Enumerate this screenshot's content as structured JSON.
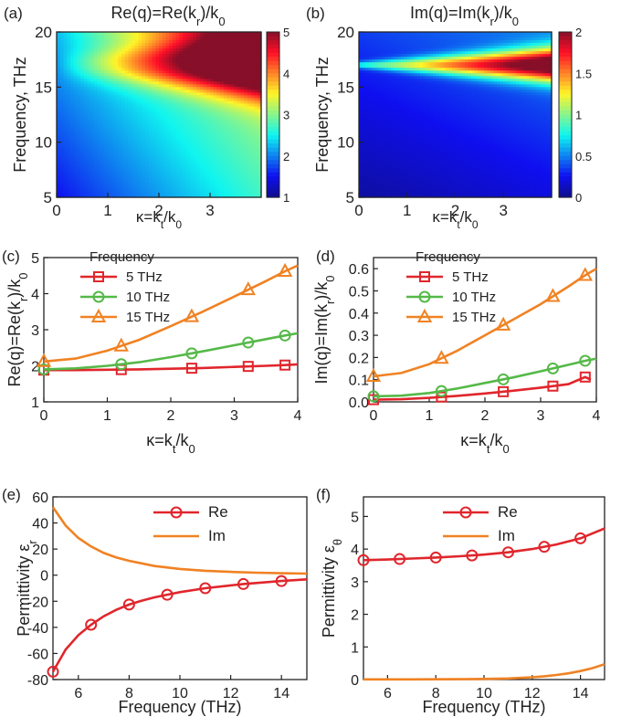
{
  "colors": {
    "red": "#e0262c",
    "green": "#55b948",
    "orange": "#f08223",
    "axis": "#222222"
  },
  "chart_data": [
    {
      "id": "a",
      "panel_label": "(a)",
      "type": "heatmap",
      "title_parts": [
        "Re(q)=Re(k",
        "r",
        ")/k",
        "0"
      ],
      "xlabel_parts": [
        "κ=k",
        "t",
        "/k",
        "0"
      ],
      "ylabel": "Frequency, THz",
      "xlim": [
        0,
        4
      ],
      "ylim": [
        5,
        20
      ],
      "xticks": [
        "0",
        "1",
        "2",
        "3"
      ],
      "yticks": [
        "5",
        "10",
        "15",
        "20"
      ],
      "colorbar": {
        "range": [
          1,
          5
        ],
        "ticks": [
          "1",
          "2",
          "3",
          "4",
          "5"
        ]
      },
      "peak_frequency": 17
    },
    {
      "id": "b",
      "panel_label": "(b)",
      "type": "heatmap",
      "title_parts": [
        "Im(q)=Im(k",
        "r",
        ")/k",
        "0"
      ],
      "xlabel_parts": [
        "κ=k",
        "t",
        "/k",
        "0"
      ],
      "ylabel": "Frequency, THz",
      "xlim": [
        0,
        4
      ],
      "ylim": [
        5,
        20
      ],
      "xticks": [
        "0",
        "1",
        "2",
        "3"
      ],
      "yticks": [
        "5",
        "10",
        "15",
        "20"
      ],
      "colorbar": {
        "range": [
          0,
          2
        ],
        "ticks": [
          "0",
          "0.5",
          "1",
          "1.5",
          "2"
        ]
      },
      "peak_frequency": 17
    },
    {
      "id": "c",
      "panel_label": "(c)",
      "type": "line",
      "ylabel_parts": [
        "Re(q)=Re(k",
        "r",
        ")/k",
        "0"
      ],
      "xlabel_parts": [
        "κ=k",
        "t",
        "/k",
        "0"
      ],
      "xlim": [
        0,
        4
      ],
      "ylim": [
        1,
        5
      ],
      "xticks": [
        "0",
        "1",
        "2",
        "3",
        "4"
      ],
      "yticks": [
        "1",
        "2",
        "3",
        "4",
        "5"
      ],
      "legend_title": "Frequency",
      "legend_position": "top-left",
      "series": [
        {
          "name": "5 THz",
          "marker": "square",
          "color": "#e0262c",
          "x": [
            0,
            0.5,
            1,
            1.5,
            2,
            2.5,
            3,
            3.5,
            3.8,
            4
          ],
          "y": [
            1.88,
            1.88,
            1.89,
            1.9,
            1.92,
            1.94,
            1.97,
            2.0,
            2.02,
            2.04
          ],
          "marker_x": [
            0,
            1.22,
            2.33,
            3.22,
            3.8
          ]
        },
        {
          "name": "10 THz",
          "marker": "circle",
          "color": "#55b948",
          "x": [
            0,
            0.5,
            1,
            1.5,
            2,
            2.5,
            3,
            3.5,
            3.8,
            4
          ],
          "y": [
            1.9,
            1.93,
            2.0,
            2.1,
            2.24,
            2.4,
            2.57,
            2.74,
            2.84,
            2.9
          ],
          "marker_x": [
            0,
            1.22,
            2.33,
            3.22,
            3.8
          ]
        },
        {
          "name": "15 THz",
          "marker": "triangle",
          "color": "#f08223",
          "x": [
            0,
            0.5,
            1,
            1.5,
            2,
            2.5,
            3,
            3.5,
            3.8,
            4
          ],
          "y": [
            2.12,
            2.2,
            2.42,
            2.72,
            3.1,
            3.5,
            3.92,
            4.35,
            4.62,
            4.78
          ],
          "marker_x": [
            0,
            1.22,
            2.33,
            3.22,
            3.8
          ]
        }
      ]
    },
    {
      "id": "d",
      "panel_label": "(d)",
      "type": "line",
      "ylabel_parts": [
        "Im(q)=Im(k",
        "r",
        ")/k",
        "0"
      ],
      "xlabel_parts": [
        "κ=k",
        "t",
        "/k",
        "0"
      ],
      "xlim": [
        0,
        4
      ],
      "ylim": [
        0,
        0.65
      ],
      "xticks": [
        "0",
        "1",
        "2",
        "3",
        "4"
      ],
      "yticks": [
        "0.0",
        "0.1",
        "0.2",
        "0.3",
        "0.4",
        "0.5",
        "0.6"
      ],
      "legend_title": "Frequency",
      "legend_position": "top-left",
      "series": [
        {
          "name": "5 THz",
          "marker": "square",
          "color": "#e0262c",
          "x": [
            0,
            0.5,
            1,
            1.5,
            2,
            2.5,
            3,
            3.5,
            3.8,
            3.9
          ],
          "y": [
            0.01,
            0.012,
            0.018,
            0.027,
            0.038,
            0.05,
            0.064,
            0.08,
            0.112,
            0.1
          ],
          "marker_x": [
            0,
            1.22,
            2.33,
            3.22,
            3.8
          ]
        },
        {
          "name": "10 THz",
          "marker": "circle",
          "color": "#55b948",
          "x": [
            0,
            0.5,
            1,
            1.5,
            2,
            2.5,
            3,
            3.5,
            3.8,
            4
          ],
          "y": [
            0.025,
            0.028,
            0.04,
            0.06,
            0.085,
            0.11,
            0.138,
            0.167,
            0.185,
            0.195
          ],
          "marker_x": [
            0,
            1.22,
            2.33,
            3.22,
            3.8
          ]
        },
        {
          "name": "15 THz",
          "marker": "triangle",
          "color": "#f08223",
          "x": [
            0,
            0.5,
            1,
            1.5,
            2,
            2.5,
            3,
            3.5,
            3.8,
            4
          ],
          "y": [
            0.115,
            0.13,
            0.17,
            0.23,
            0.3,
            0.37,
            0.44,
            0.52,
            0.57,
            0.6
          ],
          "marker_x": [
            0,
            1.22,
            2.33,
            3.22,
            3.8
          ]
        }
      ]
    },
    {
      "id": "e",
      "panel_label": "(e)",
      "type": "line",
      "ylabel_parts": [
        "Permittivity ε",
        "r"
      ],
      "xlabel": "Frequency (THz)",
      "xlim": [
        5,
        15
      ],
      "ylim": [
        -80,
        60
      ],
      "xticks": [
        "6",
        "8",
        "10",
        "12",
        "14"
      ],
      "yticks": [
        "-80",
        "-60",
        "-40",
        "-20",
        "0",
        "20",
        "40",
        "60"
      ],
      "legend_position": "top-right",
      "series": [
        {
          "name": "Re",
          "marker": "circle",
          "color": "#e0262c",
          "x": [
            5,
            5.5,
            6,
            6.5,
            7,
            7.5,
            8,
            8.5,
            9,
            9.5,
            10,
            11,
            12,
            12.5,
            13,
            14,
            15
          ],
          "y": [
            -74,
            -57,
            -46,
            -38,
            -31.5,
            -26.5,
            -22.5,
            -19.5,
            -17,
            -15,
            -13,
            -10,
            -7.8,
            -6.8,
            -6,
            -4.5,
            -3.2
          ],
          "marker_x": [
            5,
            6.5,
            8,
            9.5,
            11,
            12.5,
            14
          ]
        },
        {
          "name": "Im",
          "marker": "none",
          "color": "#f08223",
          "x": [
            5,
            5.5,
            6,
            6.5,
            7,
            7.5,
            8,
            9,
            10,
            11,
            12,
            13,
            14,
            15
          ],
          "y": [
            52,
            38,
            28.5,
            22,
            17,
            13.5,
            11,
            7,
            4.8,
            3.4,
            2.5,
            1.9,
            1.5,
            1.2
          ]
        }
      ]
    },
    {
      "id": "f",
      "panel_label": "(f)",
      "type": "line",
      "ylabel_parts": [
        "Permittivity ε",
        "θ"
      ],
      "xlabel": "Frequency (THz)",
      "xlim": [
        5,
        15
      ],
      "ylim": [
        0,
        5.6
      ],
      "xticks": [
        "6",
        "8",
        "10",
        "12",
        "14"
      ],
      "yticks": [
        "0",
        "1",
        "2",
        "3",
        "4",
        "5"
      ],
      "legend_position": "top-right",
      "series": [
        {
          "name": "Re",
          "marker": "circle",
          "color": "#e0262c",
          "x": [
            5,
            6,
            7,
            8,
            9,
            10,
            11,
            12,
            13,
            14,
            15
          ],
          "y": [
            3.66,
            3.68,
            3.71,
            3.74,
            3.78,
            3.83,
            3.9,
            4.0,
            4.14,
            4.33,
            4.63
          ],
          "marker_x": [
            5,
            6.5,
            8,
            9.5,
            11,
            12.5,
            14
          ]
        },
        {
          "name": "Im",
          "marker": "none",
          "color": "#f08223",
          "x": [
            5,
            6,
            7,
            8,
            9,
            10,
            11,
            12,
            12.5,
            13,
            13.5,
            14,
            14.5,
            15
          ],
          "y": [
            0.005,
            0.005,
            0.006,
            0.008,
            0.012,
            0.02,
            0.035,
            0.07,
            0.1,
            0.14,
            0.19,
            0.26,
            0.35,
            0.47
          ]
        }
      ]
    }
  ]
}
